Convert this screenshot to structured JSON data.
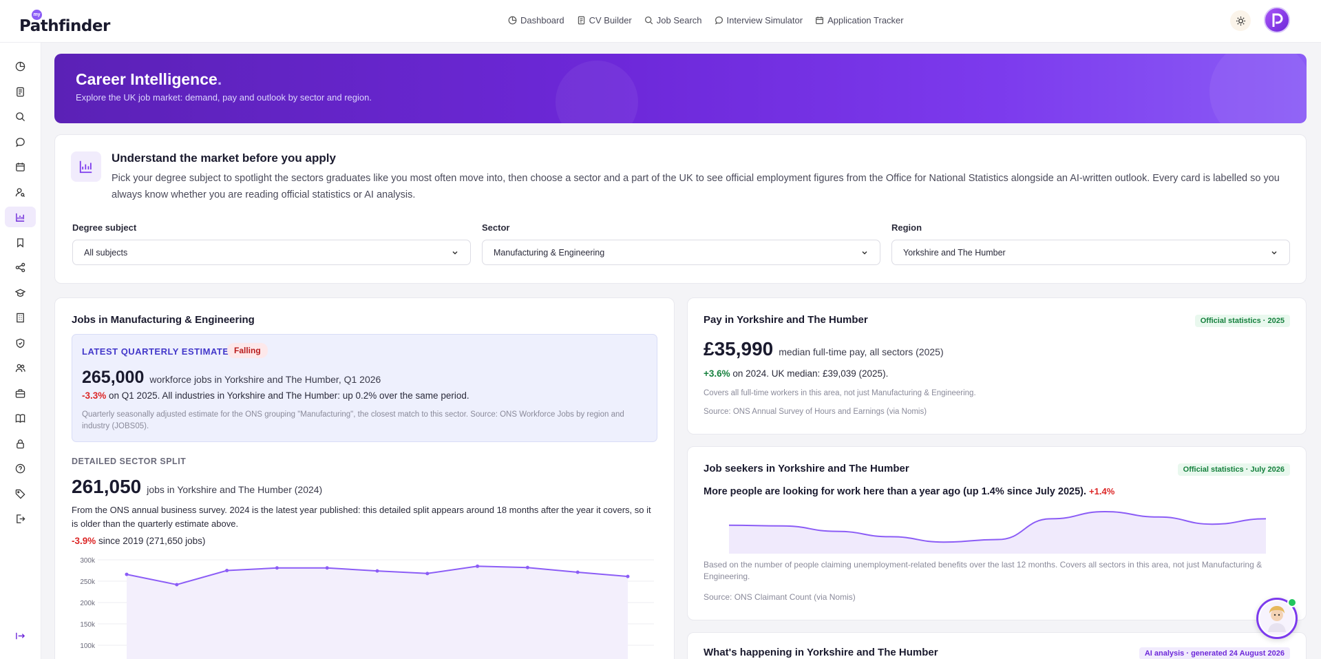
{
  "brand": {
    "logo_badge": "my",
    "logo_text": "Pathfinder"
  },
  "nav": {
    "items": [
      {
        "label": "Dashboard",
        "icon": "dashboard-icon"
      },
      {
        "label": "CV Builder",
        "icon": "document-icon"
      },
      {
        "label": "Job Search",
        "icon": "search-icon"
      },
      {
        "label": "Interview Simulator",
        "icon": "chat-icon"
      },
      {
        "label": "Application Tracker",
        "icon": "calendar-icon"
      }
    ]
  },
  "hero": {
    "title": "Career Intelligence",
    "title_dot": ".",
    "subtitle": "Explore the UK job market: demand, pay and outlook by sector and region."
  },
  "intro": {
    "title": "Understand the market before you apply",
    "text": "Pick your degree subject to spotlight the sectors graduates like you most often move into, then choose a sector and a part of the UK to see official employment figures from the Office for National Statistics alongside an AI-written outlook. Every card is labelled so you always know whether you are reading official statistics or AI analysis.",
    "filters": {
      "degree": {
        "label": "Degree subject",
        "value": "All subjects"
      },
      "sector": {
        "label": "Sector",
        "value": "Manufacturing & Engineering"
      },
      "region": {
        "label": "Region",
        "value": "Yorkshire and The Humber"
      }
    }
  },
  "jobs": {
    "title": "Jobs in Manufacturing & Engineering",
    "latest": {
      "label": "LATEST QUARTERLY ESTIMATE",
      "badge": "Falling",
      "value": "265,000",
      "value_desc": "workforce jobs in Yorkshire and The Humber, Q1 2026",
      "change": "-3.3%",
      "change_desc": " on Q1 2025. All industries in Yorkshire and The Humber: up 0.2% over the same period.",
      "note": "Quarterly seasonally adjusted estimate for the ONS grouping \"Manufacturing\", the closest match to this sector. Source: ONS Workforce Jobs by region and industry (JOBS05)."
    },
    "detail": {
      "label": "DETAILED SECTOR SPLIT",
      "value": "261,050",
      "value_desc": "jobs in Yorkshire and The Humber (2024)",
      "text": "From the ONS annual business survey. 2024 is the latest year published: this detailed split appears around 18 months after the year it covers, so it is older than the quarterly estimate above.",
      "change": "-3.9%",
      "change_desc": " since 2019 (271,650 jobs)"
    }
  },
  "pay": {
    "title": "Pay in Yorkshire and The Humber",
    "badge": "Official statistics · 2025",
    "value": "£35,990",
    "value_desc": "median full-time pay, all sectors (2025)",
    "change": "+3.6%",
    "change_desc": " on 2024. UK median: £39,039 (2025).",
    "note": "Covers all full-time workers in this area, not just Manufacturing & Engineering.",
    "source": "Source: ONS Annual Survey of Hours and Earnings (via Nomis)"
  },
  "seekers": {
    "title": "Job seekers in Yorkshire and The Humber",
    "badge": "Official statistics · July 2026",
    "headline": "More people are looking for work here than a year ago (up 1.4% since July 2025).",
    "change": "+1.4%",
    "note": "Based on the number of people claiming unemployment-related benefits over the last 12 months. Covers all sectors in this area, not just Manufacturing & Engineering.",
    "source": "Source: ONS Claimant Count (via Nomis)"
  },
  "happening": {
    "title": "What's happening in Yorkshire and The Humber",
    "badge": "AI analysis · generated 24 August 2026"
  },
  "chart_data": [
    {
      "type": "line",
      "y_ticks": [
        "300k",
        "250k",
        "200k",
        "150k",
        "100k"
      ],
      "ylim": [
        100000,
        300000
      ],
      "values": [
        266000,
        242000,
        275000,
        281000,
        281000,
        274000,
        268000,
        285000,
        282000,
        271000,
        261050
      ]
    },
    {
      "type": "area",
      "values": [
        0.38,
        0.4,
        0.55,
        0.7,
        0.85,
        0.78,
        0.2,
        0.0,
        0.15,
        0.35,
        0.2
      ]
    }
  ],
  "colors": {
    "accent": "#7c3aed",
    "negative": "#dc2626",
    "positive": "#15803d"
  }
}
